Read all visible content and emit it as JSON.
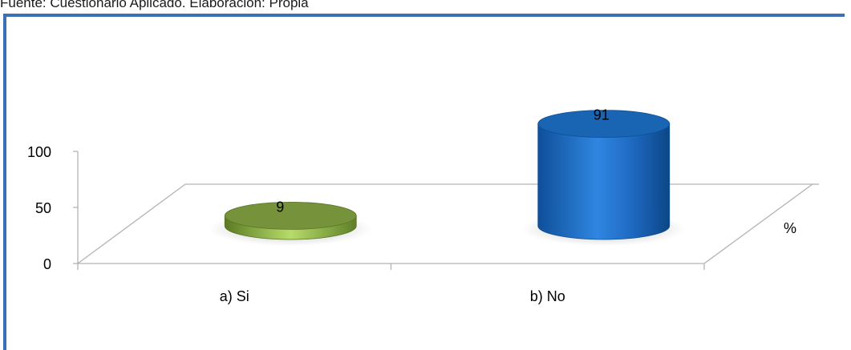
{
  "source_note": "Fuente: Cuestionario Aplicado. Elaboración: Propia",
  "colors": {
    "frame": "#3d6fb5",
    "series_si": "#77933c",
    "series_no": "#1f6bbf"
  },
  "chart_data": {
    "type": "bar",
    "shape": "cylinder-3d",
    "categories": [
      "a) Si",
      "b) No"
    ],
    "values": [
      9,
      91
    ],
    "series": [
      {
        "name": "%",
        "values": [
          9,
          91
        ]
      }
    ],
    "yticks": [
      "0",
      "50",
      "100"
    ],
    "ylim": [
      0,
      100
    ],
    "legend": {
      "entries": [
        "%"
      ],
      "placement": "right"
    },
    "grid": false,
    "title": "",
    "xlabel": "",
    "ylabel": ""
  }
}
